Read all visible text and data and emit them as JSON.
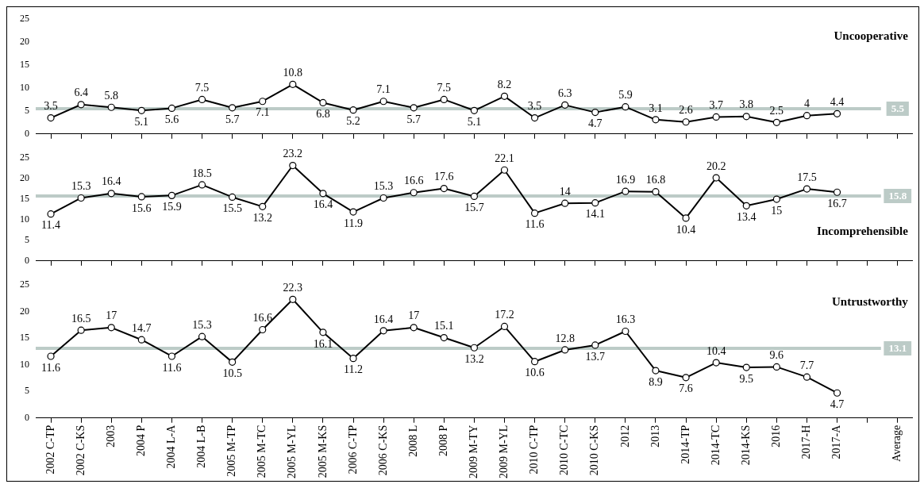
{
  "chart_data": [
    {
      "type": "line",
      "series": [
        {
          "name": "Uncooperative",
          "color": "#000000",
          "values": [
            3.5,
            6.4,
            5.8,
            5.1,
            5.6,
            7.5,
            5.7,
            7.1,
            10.8,
            6.8,
            5.2,
            7.1,
            5.7,
            7.5,
            5.1,
            8.2,
            3.5,
            6.3,
            4.7,
            5.9,
            3.1,
            2.6,
            3.7,
            3.8,
            2.5,
            4,
            4.4,
            null,
            null
          ]
        }
      ],
      "ylim": [
        0,
        25
      ],
      "yticks": [
        0,
        5,
        10,
        15,
        20,
        25
      ],
      "marker": "circle",
      "data_labels": true,
      "tick_labels": "y",
      "grid": false,
      "legend": false,
      "ref_lines": [
        {
          "axis": "y",
          "value": 5.5,
          "label": "5.5",
          "color": "#bccbc7"
        }
      ]
    },
    {
      "type": "line",
      "series": [
        {
          "name": "Incomprehensible",
          "color": "#000000",
          "values": [
            11.4,
            15.3,
            16.4,
            15.6,
            15.9,
            18.5,
            15.5,
            13.2,
            23.2,
            16.4,
            11.9,
            15.3,
            16.6,
            17.6,
            15.7,
            22.1,
            11.6,
            14,
            14.1,
            16.9,
            16.8,
            10.4,
            20.2,
            13.4,
            15,
            17.5,
            16.7,
            null,
            null
          ]
        }
      ],
      "ylim": [
        0,
        25
      ],
      "yticks": [
        0,
        5,
        10,
        15,
        20,
        25
      ],
      "marker": "circle",
      "data_labels": true,
      "tick_labels": "y",
      "grid": false,
      "legend": false,
      "ref_lines": [
        {
          "axis": "y",
          "value": 15.8,
          "label": "15.8",
          "color": "#bccbc7"
        }
      ]
    },
    {
      "type": "line",
      "categories": [
        "2002 C-TP",
        "2002 C-KS",
        "2003",
        "2004 P",
        "2004 L-A",
        "2004 L-B",
        "2005 M-TP",
        "2005 M-TC",
        "2005 M-YL",
        "2005 M-KS",
        "2006 C-TP",
        "2006 C-KS",
        "2008 L",
        "2008 P",
        "2009 M-TY",
        "2009 M-YL",
        "2010 C-TP",
        "2010 C-TC",
        "2010 C-KS",
        "2012",
        "2013",
        "2014-TP",
        "2014-TC",
        "2014-KS",
        "2016",
        "2017-H",
        "2017-A",
        null,
        "Average"
      ],
      "series": [
        {
          "name": "Untrustworthy",
          "color": "#000000",
          "values": [
            11.6,
            16.5,
            17,
            14.7,
            11.6,
            15.3,
            10.5,
            16.6,
            22.3,
            16.1,
            11.2,
            16.4,
            17,
            15.1,
            13.2,
            17.2,
            10.6,
            12.8,
            13.7,
            16.3,
            8.9,
            7.6,
            10.4,
            9.5,
            9.6,
            7.7,
            4.7,
            null,
            null
          ]
        }
      ],
      "ylim": [
        0,
        25
      ],
      "yticks": [
        0,
        5,
        10,
        15,
        20,
        25
      ],
      "marker": "circle",
      "data_labels": true,
      "grid": false,
      "legend": false,
      "ref_lines": [
        {
          "axis": "y",
          "value": 13.1,
          "label": "13.1",
          "color": "#bccbc7"
        }
      ]
    }
  ]
}
